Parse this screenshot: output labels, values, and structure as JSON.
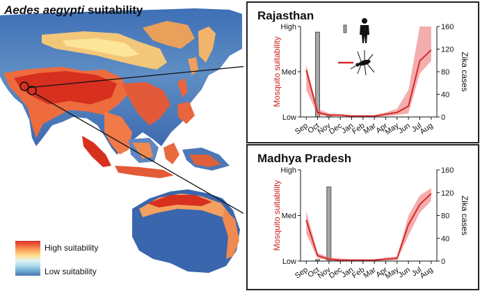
{
  "map": {
    "title_italic": "Aedes aegypti",
    "title_rest": " suitability",
    "legend_high": "High suitability",
    "legend_low": "Low suitability"
  },
  "colors": {
    "suitability_line": "#d42a2a",
    "suitability_band": "#eb6a6a",
    "case_bar": "#a6a6a6",
    "water": "#ffffff",
    "high": "#d73027",
    "low": "#4575b4"
  },
  "icons": [
    "person-icon",
    "mosquito-icon"
  ],
  "chart_data": [
    {
      "type": "line",
      "title": "Rajasthan",
      "ylabel_left": "Mosquito suitability",
      "ylabel_right": "Zika cases",
      "categories": [
        "Sep",
        "Oct",
        "Nov",
        "Dec",
        "Jan",
        "Feb",
        "Mar",
        "Apr",
        "May",
        "Jun",
        "Jul",
        "Aug"
      ],
      "left_ticks": [
        "Low",
        "Med",
        "High"
      ],
      "right_ticks": [
        0,
        40,
        80,
        120,
        160
      ],
      "right_ylim": [
        0,
        160
      ],
      "suitability_mean": [
        0.52,
        0.05,
        0.02,
        0.02,
        0.01,
        0.01,
        0.01,
        0.03,
        0.05,
        0.12,
        0.62,
        0.74
      ],
      "suitability_lower": [
        0.3,
        0.02,
        0.01,
        0.01,
        0.0,
        0.0,
        0.0,
        0.01,
        0.02,
        0.04,
        0.48,
        0.62
      ],
      "suitability_upper": [
        0.58,
        0.09,
        0.04,
        0.03,
        0.02,
        0.02,
        0.02,
        0.05,
        0.09,
        0.3,
        1.0,
        1.0
      ],
      "zika_cases": [
        0,
        150,
        2,
        0,
        0,
        0,
        0,
        0,
        0,
        0,
        0,
        0
      ],
      "legend": [
        {
          "icon": "person-icon",
          "kind": "bar"
        },
        {
          "icon": "mosquito-icon",
          "kind": "line"
        }
      ]
    },
    {
      "type": "line",
      "title": "Madhya Pradesh",
      "ylabel_left": "Mosquito suitability",
      "ylabel_right": "Zika cases",
      "categories": [
        "Sep",
        "Oct",
        "Nov",
        "Dec",
        "Jan",
        "Feb",
        "Mar",
        "Apr",
        "May",
        "Jun",
        "Jul",
        "Aug"
      ],
      "left_ticks": [
        "Low",
        "Med",
        "High"
      ],
      "right_ticks": [
        0,
        40,
        80,
        120,
        160
      ],
      "right_ylim": [
        0,
        160
      ],
      "suitability_mean": [
        0.45,
        0.06,
        0.02,
        0.01,
        0.01,
        0.01,
        0.01,
        0.02,
        0.03,
        0.4,
        0.62,
        0.74
      ],
      "suitability_lower": [
        0.3,
        0.03,
        0.01,
        0.0,
        0.0,
        0.0,
        0.0,
        0.01,
        0.01,
        0.28,
        0.53,
        0.66
      ],
      "suitability_upper": [
        0.55,
        0.09,
        0.04,
        0.03,
        0.02,
        0.02,
        0.02,
        0.04,
        0.05,
        0.5,
        0.72,
        0.8
      ],
      "zika_cases": [
        0,
        2,
        130,
        0,
        0,
        0,
        0,
        0,
        0,
        0,
        0,
        0
      ]
    }
  ]
}
